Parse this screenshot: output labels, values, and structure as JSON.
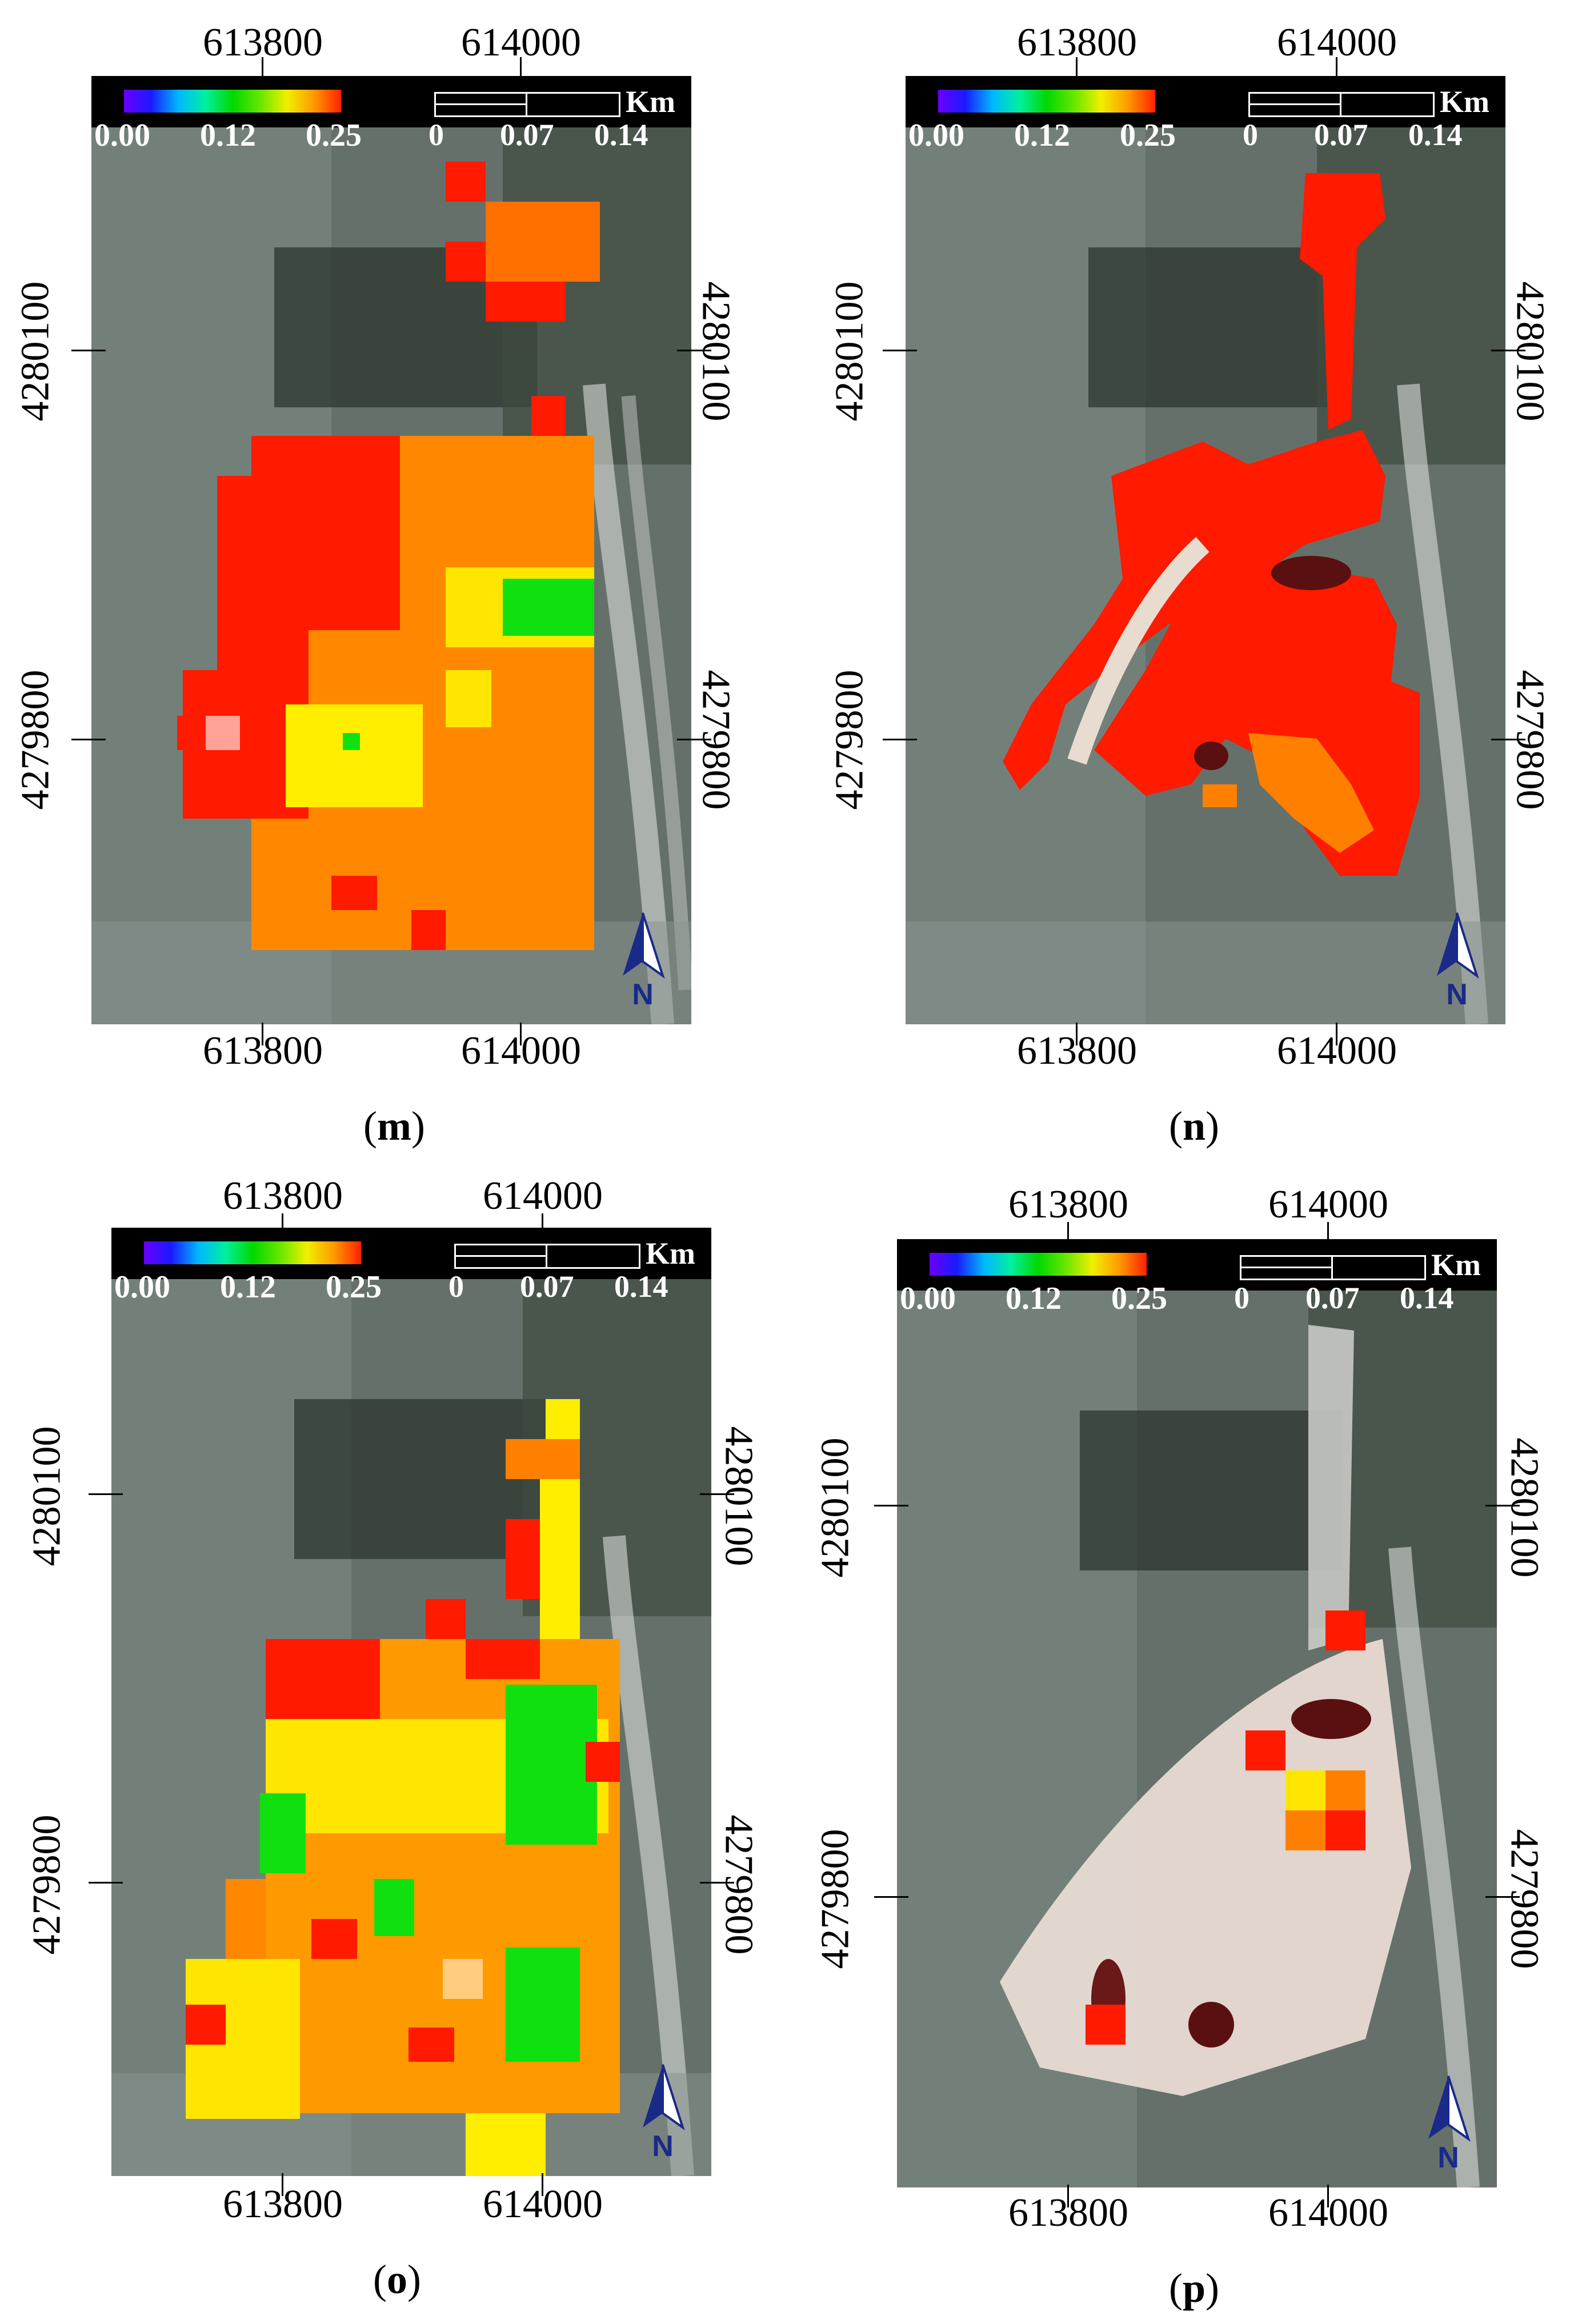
{
  "colorbar": {
    "min": "0.00",
    "mid": "0.12",
    "max": "0.25"
  },
  "scalebar": {
    "unit": "Km",
    "labels": [
      "0",
      "0.07",
      "0.14"
    ]
  },
  "north_label": "N",
  "panels": [
    {
      "id": "m",
      "caption_open": "(",
      "caption_letter": "m",
      "caption_close": ")",
      "x_ticks": [
        "613800",
        "614000"
      ],
      "y_ticks": [
        "4280100",
        "4279800"
      ]
    },
    {
      "id": "n",
      "caption_open": "(",
      "caption_letter": "n",
      "caption_close": ")",
      "x_ticks": [
        "613800",
        "614000"
      ],
      "y_ticks": [
        "4280100",
        "4279800"
      ]
    },
    {
      "id": "o",
      "caption_open": "(",
      "caption_letter": "o",
      "caption_close": ")",
      "x_ticks": [
        "613800",
        "614000"
      ],
      "y_ticks": [
        "4280100",
        "4279800"
      ]
    },
    {
      "id": "p",
      "caption_open": "(",
      "caption_letter": "p",
      "caption_close": ")",
      "x_ticks": [
        "613800",
        "614000"
      ],
      "y_ticks": [
        "4280100",
        "4279800"
      ]
    }
  ],
  "colors": {
    "red": "#ff1a00",
    "orange": "#ff8000",
    "yellow": "#ffff00",
    "green": "#10e010"
  },
  "icons": [
    "north-arrow-icon"
  ]
}
